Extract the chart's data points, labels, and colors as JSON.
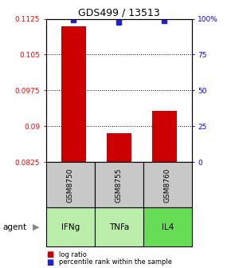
{
  "title": "GDS499 / 13513",
  "samples": [
    "GSM8750",
    "GSM8755",
    "GSM8760"
  ],
  "agents": [
    "IFNg",
    "TNFa",
    "IL4"
  ],
  "bar_values": [
    0.111,
    0.0885,
    0.0932
  ],
  "percentile_values": [
    0.1122,
    0.1118,
    0.1121
  ],
  "bar_color": "#cc0000",
  "percentile_color": "#2222cc",
  "ylim_left": [
    0.0825,
    0.1125
  ],
  "yticks_left": [
    0.0825,
    0.09,
    0.0975,
    0.105,
    0.1125
  ],
  "ytick_labels_left": [
    "0.0825",
    "0.09",
    "0.0975",
    "0.105",
    "0.1125"
  ],
  "yticks_right": [
    0,
    25,
    50,
    75,
    100
  ],
  "ytick_labels_right": [
    "0",
    "25",
    "50",
    "75",
    "100%"
  ],
  "grid_values": [
    0.09,
    0.0975,
    0.105
  ],
  "bar_width": 0.55,
  "gray_color": "#c8c8c8",
  "green_light": "#bbeeaa",
  "green_dark": "#66dd55",
  "agent_label": "agent",
  "legend_items": [
    {
      "label": "log ratio",
      "color": "#cc0000"
    },
    {
      "label": "percentile rank within the sample",
      "color": "#2222cc"
    }
  ],
  "background_color": "#ffffff"
}
